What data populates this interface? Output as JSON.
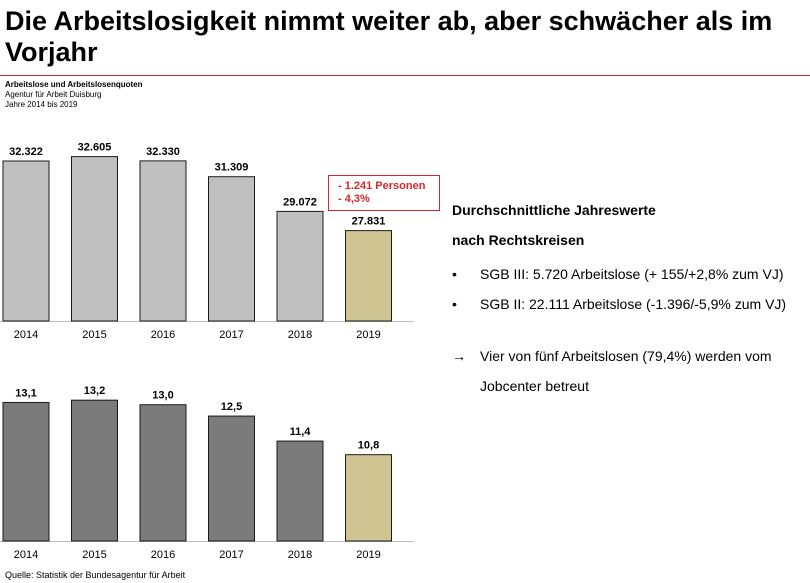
{
  "title": "Die Arbeitslosigkeit nimmt weiter ab, aber schwächer als im Vorjahr",
  "meta": {
    "line1": "Arbeitslose und Arbeitslosenquoten",
    "line2": "Agentur für Arbeit Duisburg",
    "line3": "Jahre 2014 bis 2019"
  },
  "colors": {
    "accent": "#d9262b",
    "bar_top": "#c0c0c0",
    "bar_bottom": "#7b7b7b",
    "bar_highlight": "#cfc592"
  },
  "chart_data": [
    {
      "type": "bar",
      "categories": [
        "2014",
        "2015",
        "2016",
        "2017",
        "2018",
        "2019"
      ],
      "values": [
        32322,
        32605,
        32330,
        31309,
        29072,
        27831
      ],
      "labels": [
        "32.322",
        "32.605",
        "32.330",
        "31.309",
        "29.072",
        "27.831"
      ],
      "ylim": [
        22000,
        34000
      ]
    },
    {
      "type": "bar",
      "categories": [
        "2014",
        "2015",
        "2016",
        "2017",
        "2018",
        "2019"
      ],
      "values": [
        13.1,
        13.2,
        13.0,
        12.5,
        11.4,
        10.8
      ],
      "labels": [
        "13,1",
        "13,2",
        "13,0",
        "12,5",
        "11,4",
        "10,8"
      ],
      "ylim": [
        7,
        14
      ]
    }
  ],
  "callout": {
    "line1": "- 1.241 Personen",
    "line2": "- 4,3%"
  },
  "right": {
    "heading1": "Durchschnittliche Jahreswerte",
    "heading2": "nach Rechtskreisen",
    "bullet_symbol": "•",
    "bullets": [
      "SGB III: 5.720 Arbeitslose (+ 155/+2,8% zum VJ)",
      "SGB II:  22.111 Arbeitslose (-1.396/-5,9% zum VJ)"
    ],
    "arrow_symbol": "→",
    "arrow_text": "Vier von fünf Arbeitslosen (79,4%) werden vom Jobcenter betreut"
  },
  "source": "Quelle: Statistik der Bundesagentur für Arbeit"
}
